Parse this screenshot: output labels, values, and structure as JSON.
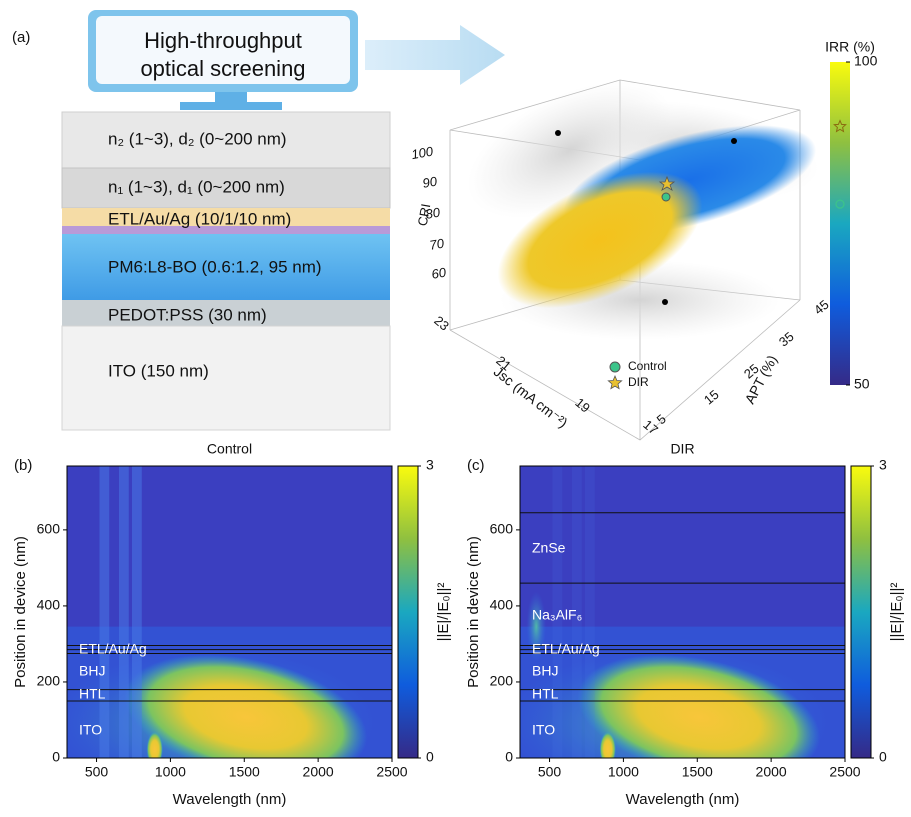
{
  "figure": {
    "panel_a": {
      "label": "(a)",
      "screening_title": [
        "High-throughput",
        "optical screening"
      ],
      "layers": [
        "n₂ (1~3), d₂ (0~200 nm)",
        "n₁ (1~3), d₁ (0~200 nm)",
        "ETL/Au/Ag (10/1/10 nm)",
        "PM6:L8-BO (0.6:1.2, 95 nm)",
        "PEDOT:PSS (30 nm)",
        "ITO (150 nm)"
      ]
    }
  },
  "chart_data": [
    {
      "type": "scatter3d",
      "x_label": "APT (%)",
      "xticks": [
        5,
        15,
        25,
        35,
        45
      ],
      "y_label": "Jsc (mA cm⁻²)",
      "yticks": [
        17,
        19,
        21,
        23
      ],
      "z_label": "CRI",
      "zticks": [
        60,
        70,
        80,
        90,
        100
      ],
      "series": [
        {
          "name": "Control",
          "color": "#3cc48a",
          "irr": 78
        },
        {
          "name": "DIR",
          "color": "#e8c030",
          "irr": 90
        }
      ],
      "colorbar": {
        "label": "IRR (%)",
        "lim": [
          50,
          100
        ],
        "ticks": [
          50,
          100
        ]
      }
    },
    {
      "type": "heatmap",
      "panel": "(b)",
      "title": "Control",
      "xlabel": "Wavelength (nm)",
      "ylabel": "Position in device (nm)",
      "xlim": [
        300,
        2500
      ],
      "xticks": [
        500,
        1000,
        1500,
        2000,
        2500
      ],
      "ylim": [
        0,
        768
      ],
      "yticks": [
        0,
        200,
        400,
        600
      ],
      "boundaries": [
        150,
        180,
        275,
        285,
        296
      ],
      "layers": [
        "ETL/Au/Ag",
        "BHJ",
        "HTL",
        "ITO"
      ],
      "colorbar": {
        "label": "||E|/|E₀||²",
        "lim": [
          0,
          3
        ],
        "ticks": [
          0,
          3
        ]
      }
    },
    {
      "type": "heatmap",
      "panel": "(c)",
      "title": "DIR",
      "xlabel": "Wavelength (nm)",
      "ylabel": "Position in device (nm)",
      "xlim": [
        300,
        2500
      ],
      "xticks": [
        500,
        1000,
        1500,
        2000,
        2500
      ],
      "ylim": [
        0,
        768
      ],
      "yticks": [
        0,
        200,
        400,
        600
      ],
      "boundaries": [
        150,
        180,
        275,
        285,
        296,
        460,
        645
      ],
      "layers": [
        "ZnSe",
        "Na₃AlF₆",
        "ETL/Au/Ag",
        "BHJ",
        "HTL",
        "ITO"
      ],
      "colorbar": {
        "label": "||E|/|E₀||²",
        "lim": [
          0,
          3
        ],
        "ticks": [
          0,
          3
        ]
      }
    }
  ]
}
